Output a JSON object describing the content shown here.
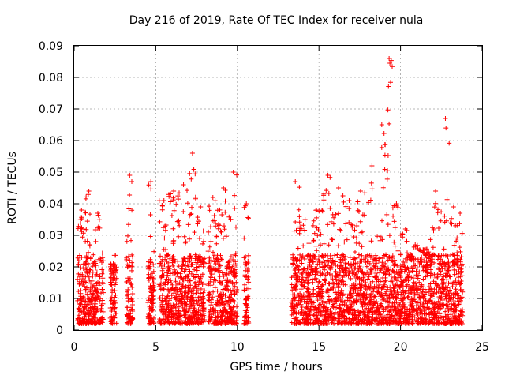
{
  "chart_data": {
    "type": "scatter",
    "title": "Day 216 of 2019, Rate Of TEC Index for receiver nula",
    "xlabel": "GPS time / hours",
    "ylabel": "ROTI / TECUs",
    "xlim": [
      0,
      25
    ],
    "ylim": [
      0,
      0.09
    ],
    "x_ticks": [
      "0",
      "5",
      "10",
      "15",
      "20",
      "25"
    ],
    "y_ticks": [
      "0",
      "0.01",
      "0.02",
      "0.03",
      "0.04",
      "0.05",
      "0.06",
      "0.07",
      "0.08",
      "0.09"
    ],
    "grid": true,
    "marker": "+",
    "color": "#ff0000",
    "clusters": [
      {
        "x0": 0.2,
        "x1": 0.7,
        "peak": 0.038
      },
      {
        "x0": 0.7,
        "x1": 1.1,
        "peak": 0.044
      },
      {
        "x0": 1.1,
        "x1": 1.8,
        "peak": 0.037
      },
      {
        "x0": 2.2,
        "x1": 2.6,
        "peak": 0.021
      },
      {
        "x0": 3.2,
        "x1": 3.6,
        "peak": 0.049
      },
      {
        "x0": 4.5,
        "x1": 4.9,
        "peak": 0.047
      },
      {
        "x0": 5.2,
        "x1": 5.8,
        "peak": 0.041
      },
      {
        "x0": 5.8,
        "x1": 6.4,
        "peak": 0.044
      },
      {
        "x0": 6.4,
        "x1": 7.0,
        "peak": 0.046
      },
      {
        "x0": 7.0,
        "x1": 7.5,
        "peak": 0.056
      },
      {
        "x0": 7.5,
        "x1": 8.0,
        "peak": 0.039
      },
      {
        "x0": 8.2,
        "x1": 8.8,
        "peak": 0.042
      },
      {
        "x0": 8.8,
        "x1": 9.5,
        "peak": 0.045
      },
      {
        "x0": 9.5,
        "x1": 10.0,
        "peak": 0.05
      },
      {
        "x0": 10.4,
        "x1": 10.7,
        "peak": 0.04
      },
      {
        "x0": 13.3,
        "x1": 13.8,
        "peak": 0.047
      },
      {
        "x0": 13.8,
        "x1": 14.5,
        "peak": 0.035
      },
      {
        "x0": 14.5,
        "x1": 15.2,
        "peak": 0.038
      },
      {
        "x0": 15.2,
        "x1": 15.9,
        "peak": 0.049
      },
      {
        "x0": 15.9,
        "x1": 16.5,
        "peak": 0.045
      },
      {
        "x0": 16.5,
        "x1": 17.2,
        "peak": 0.041
      },
      {
        "x0": 17.2,
        "x1": 17.9,
        "peak": 0.044
      },
      {
        "x0": 17.9,
        "x1": 18.6,
        "peak": 0.052
      },
      {
        "x0": 18.6,
        "x1": 19.1,
        "peak": 0.065
      },
      {
        "x0": 19.1,
        "x1": 19.5,
        "peak": 0.086
      },
      {
        "x0": 19.5,
        "x1": 20.0,
        "peak": 0.04
      },
      {
        "x0": 20.0,
        "x1": 20.6,
        "peak": 0.032
      },
      {
        "x0": 20.6,
        "x1": 21.2,
        "peak": 0.027
      },
      {
        "x0": 21.2,
        "x1": 21.8,
        "peak": 0.026
      },
      {
        "x0": 21.8,
        "x1": 22.5,
        "peak": 0.044
      },
      {
        "x0": 22.5,
        "x1": 23.0,
        "peak": 0.067
      },
      {
        "x0": 23.0,
        "x1": 23.5,
        "peak": 0.039
      },
      {
        "x0": 23.5,
        "x1": 23.8,
        "peak": 0.037
      }
    ]
  }
}
